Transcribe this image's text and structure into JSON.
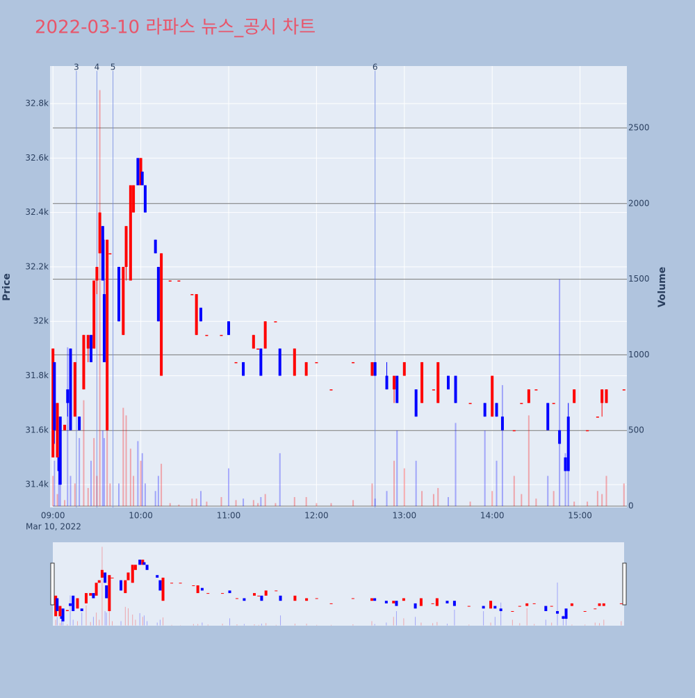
{
  "chart_data": {
    "type": "candlestick",
    "title": "2022-03-10 라파스 뉴스_공시 차트",
    "ylabel": "Price",
    "y2label": "Volume",
    "date_label": "Mar 10, 2022",
    "increasing_color": "#ff0000",
    "decreasing_color": "#0000ff",
    "xlim": [
      "08:58",
      "15:32"
    ],
    "xticks": [
      "09:00",
      "10:00",
      "11:00",
      "12:00",
      "13:00",
      "14:00",
      "15:00"
    ],
    "ylim": [
      31316,
      32938
    ],
    "yticks": [
      {
        "value": 31400,
        "label": "31.4k"
      },
      {
        "value": 31600,
        "label": "31.6k"
      },
      {
        "value": 31800,
        "label": "31.8k"
      },
      {
        "value": 32000,
        "label": "32k"
      },
      {
        "value": 32200,
        "label": "32.2k"
      },
      {
        "value": 32400,
        "label": "32.4k"
      },
      {
        "value": 32600,
        "label": "32.6k"
      },
      {
        "value": 32800,
        "label": "32.8k"
      }
    ],
    "y2lim": [
      -9,
      2909
    ],
    "y2ticks": [
      0,
      500,
      1000,
      1500,
      2000,
      2500
    ],
    "events": [
      {
        "x": "09:16",
        "label": "3"
      },
      {
        "x": "09:30",
        "label": "4"
      },
      {
        "x": "09:41",
        "label": "5"
      },
      {
        "x": "12:40",
        "label": "6"
      }
    ],
    "x": [
      "09:00",
      "09:01",
      "09:03",
      "09:04",
      "09:05",
      "09:08",
      "09:10",
      "09:12",
      "09:15",
      "09:18",
      "09:21",
      "09:24",
      "09:26",
      "09:28",
      "09:30",
      "09:32",
      "09:34",
      "09:35",
      "09:37",
      "09:39",
      "09:45",
      "09:48",
      "09:50",
      "09:53",
      "09:55",
      "09:58",
      "10:00",
      "10:01",
      "10:03",
      "10:10",
      "10:12",
      "10:14",
      "10:20",
      "10:26",
      "10:35",
      "10:38",
      "10:41",
      "10:45",
      "10:55",
      "11:00",
      "11:05",
      "11:10",
      "11:17",
      "11:20",
      "11:22",
      "11:25",
      "11:32",
      "11:35",
      "11:45",
      "11:53",
      "12:00",
      "12:10",
      "12:25",
      "12:38",
      "12:40",
      "12:48",
      "12:53",
      "12:55",
      "13:00",
      "13:08",
      "13:12",
      "13:20",
      "13:23",
      "13:30",
      "13:35",
      "13:45",
      "13:55",
      "14:00",
      "14:03",
      "14:07",
      "14:15",
      "14:20",
      "14:25",
      "14:30",
      "14:38",
      "14:42",
      "14:46",
      "14:50",
      "14:52",
      "14:56",
      "15:05",
      "15:12",
      "15:15",
      "15:18",
      "15:30"
    ],
    "open": [
      31500,
      31850,
      31500,
      31500,
      31650,
      31600,
      31750,
      31900,
      31650,
      31650,
      31750,
      31900,
      31950,
      31900,
      32150,
      32250,
      32350,
      32100,
      31600,
      32250,
      32200,
      31950,
      32200,
      32150,
      32400,
      32600,
      32500,
      32550,
      32500,
      32300,
      32200,
      31800,
      32150,
      32150,
      32100,
      31950,
      32050,
      31950,
      31950,
      32000,
      31850,
      31850,
      31900,
      31900,
      31900,
      31900,
      32000,
      31900,
      31800,
      31800,
      31850,
      31750,
      31850,
      31800,
      31850,
      31800,
      31750,
      31800,
      31800,
      31750,
      31700,
      31750,
      31700,
      31800,
      31800,
      31700,
      31700,
      31650,
      31700,
      31650,
      31600,
      31700,
      31700,
      31750,
      31700,
      31700,
      31600,
      31500,
      31650,
      31700,
      31600,
      31650,
      31700,
      31700,
      31750
    ],
    "high": [
      31900,
      31850,
      31700,
      31500,
      31650,
      31620,
      31750,
      31900,
      31850,
      31650,
      31950,
      31950,
      31950,
      32150,
      32200,
      32400,
      32350,
      32300,
      32300,
      32250,
      32200,
      32200,
      32350,
      32500,
      32500,
      32600,
      32600,
      32550,
      32500,
      32300,
      32200,
      32250,
      32150,
      32150,
      32100,
      32100,
      32050,
      31950,
      31950,
      32000,
      31850,
      31850,
      31950,
      31900,
      31900,
      32000,
      32000,
      31900,
      31900,
      31850,
      31850,
      31750,
      31850,
      31850,
      31850,
      31850,
      31800,
      31800,
      31850,
      31750,
      31850,
      31750,
      31850,
      31800,
      31800,
      31700,
      31700,
      31800,
      31700,
      31650,
      31600,
      31700,
      31750,
      31750,
      31700,
      31700,
      31600,
      31500,
      31700,
      31750,
      31600,
      31650,
      31750,
      31750,
      31750
    ],
    "low": [
      31500,
      31550,
      31500,
      31400,
      31400,
      31600,
      31650,
      31600,
      31650,
      31600,
      31750,
      31850,
      31850,
      31900,
      32100,
      32250,
      32150,
      31850,
      31600,
      32250,
      32000,
      31950,
      32150,
      32150,
      32400,
      32500,
      32500,
      32500,
      32400,
      32250,
      32000,
      31800,
      32150,
      32150,
      32100,
      31950,
      32000,
      31950,
      31950,
      31950,
      31850,
      31800,
      31900,
      31900,
      31800,
      31900,
      32000,
      31800,
      31800,
      31800,
      31850,
      31750,
      31850,
      31800,
      31800,
      31750,
      31700,
      31700,
      31800,
      31650,
      31700,
      31750,
      31700,
      31750,
      31700,
      31700,
      31650,
      31650,
      31650,
      31600,
      31600,
      31700,
      31700,
      31750,
      31600,
      31700,
      31550,
      31450,
      31450,
      31700,
      31600,
      31650,
      31650,
      31700,
      31750
    ],
    "close": [
      31900,
      31600,
      31700,
      31450,
      31400,
      31620,
      31700,
      31600,
      31850,
      31600,
      31950,
      31950,
      31850,
      32150,
      32200,
      32400,
      32150,
      31850,
      32300,
      32250,
      32000,
      32200,
      32350,
      32500,
      32500,
      32500,
      32600,
      32500,
      32400,
      32250,
      32000,
      32250,
      32150,
      32150,
      32100,
      32100,
      32000,
      31950,
      31950,
      31950,
      31850,
      31800,
      31950,
      31900,
      31800,
      32000,
      32000,
      31800,
      31900,
      31850,
      31850,
      31750,
      31850,
      31850,
      31800,
      31750,
      31800,
      31700,
      31850,
      31650,
      31850,
      31750,
      31850,
      31750,
      31700,
      31700,
      31650,
      31800,
      31650,
      31600,
      31600,
      31700,
      31750,
      31750,
      31600,
      31700,
      31550,
      31450,
      31450,
      31750,
      31600,
      31650,
      31750,
      31750,
      31750
    ],
    "volume": [
      200,
      300,
      80,
      250,
      400,
      40,
      1050,
      200,
      150,
      450,
      700,
      120,
      300,
      450,
      200,
      2750,
      500,
      450,
      700,
      150,
      150,
      650,
      600,
      380,
      200,
      430,
      300,
      350,
      150,
      100,
      200,
      280,
      20,
      10,
      50,
      50,
      100,
      30,
      60,
      250,
      40,
      50,
      40,
      20,
      60,
      80,
      20,
      350,
      60,
      60,
      20,
      20,
      40,
      150,
      50,
      100,
      300,
      500,
      250,
      300,
      100,
      80,
      120,
      60,
      550,
      30,
      500,
      100,
      300,
      800,
      200,
      80,
      600,
      50,
      200,
      100,
      1500,
      350,
      400,
      30,
      30,
      100,
      80,
      200,
      150
    ]
  }
}
